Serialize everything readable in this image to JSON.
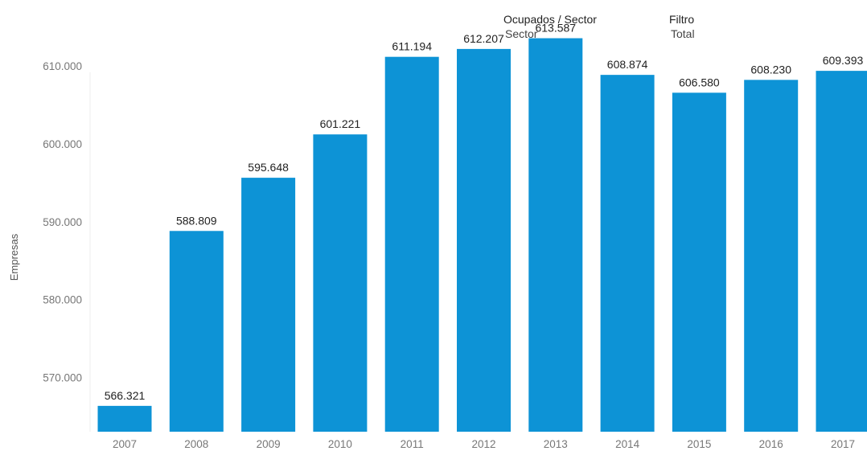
{
  "filters": [
    {
      "label": "Ocupados / Sector",
      "value": "Sector"
    },
    {
      "label": "Filtro",
      "value": "Total"
    }
  ],
  "chart_data": {
    "type": "bar",
    "ylabel": "Empresas",
    "ylim": [
      563000,
      618500
    ],
    "yticks": [
      "570.000",
      "580.000",
      "590.000",
      "600.000",
      "610.000"
    ],
    "ytick_values": [
      570000,
      580000,
      590000,
      600000,
      610000
    ],
    "categories": [
      "2007",
      "2008",
      "2009",
      "2010",
      "2011",
      "2012",
      "2013",
      "2014",
      "2015",
      "2016",
      "2017"
    ],
    "values": [
      566321,
      588809,
      595648,
      601221,
      611194,
      612207,
      613587,
      608874,
      606580,
      608230,
      609393
    ],
    "value_labels": [
      "566.321",
      "588.809",
      "595.648",
      "601.221",
      "611.194",
      "612.207",
      "613.587",
      "608.874",
      "606.580",
      "608.230",
      "609.393"
    ],
    "bar_color": "#0D93D6",
    "grid": false
  }
}
